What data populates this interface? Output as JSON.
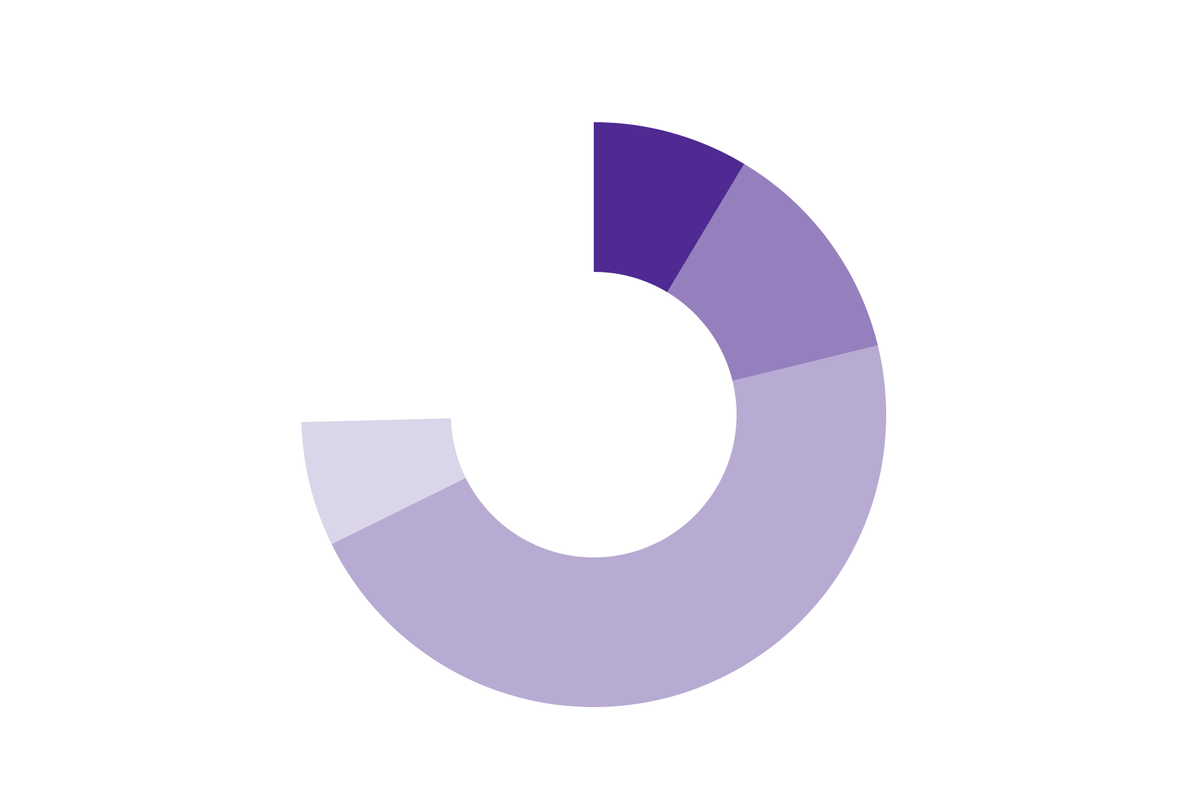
{
  "chart_data": {
    "type": "donut",
    "values": [
      8.6,
      12.6,
      46.5,
      6.9,
      25.4
    ],
    "colors": [
      "#4e2a92",
      "#9580bd",
      "#b7abd3",
      "#dbd5e9",
      "#ffffff"
    ]
  }
}
